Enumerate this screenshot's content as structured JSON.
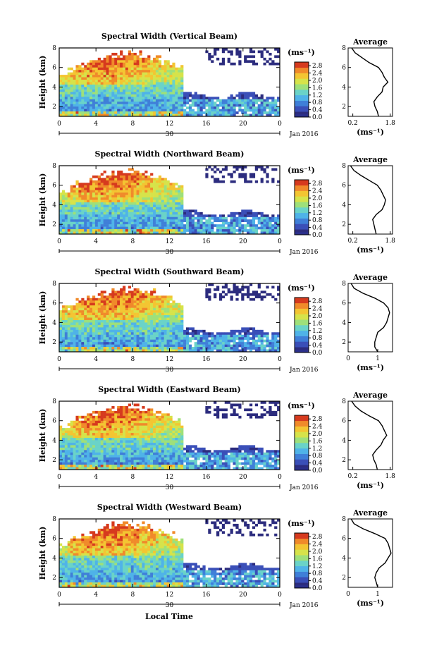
{
  "figure": {
    "xlabel": "Local Time",
    "date_label": "Jan 2016",
    "date_day": "30",
    "ylabel": "Height (km)",
    "colorbar_unit": "(ms⁻¹)",
    "avg_title": "Average",
    "avg_xlabel": "(ms⁻¹)"
  },
  "colors": {
    "colormap": [
      "#2c2c7e",
      "#3a4fb8",
      "#3f7fd8",
      "#4fb3e8",
      "#6ad3c8",
      "#9ee07a",
      "#d6e34a",
      "#f3c532",
      "#f08a2a",
      "#d63a1e"
    ],
    "low_band": "#2b2f8a"
  },
  "chart_data": [
    {
      "type": "heatmap",
      "title": "Spectral Width (Vertical Beam)",
      "xlabel": "",
      "ylabel": "Height (km)",
      "xlim": [
        0,
        24
      ],
      "ylim": [
        1,
        8
      ],
      "x_ticks": [
        "0",
        "4",
        "8",
        "12",
        "16",
        "20",
        "0"
      ],
      "y_ticks": [
        "8",
        "6",
        "4",
        "2"
      ],
      "colorbar": {
        "ticks": [
          "2.8",
          "2.4",
          "2.0",
          "1.6",
          "1.2",
          "0.8",
          "0.4",
          "0.0"
        ],
        "range": [
          0,
          3.0
        ]
      },
      "average": {
        "title": "Average",
        "x_ticks": [
          "0.2",
          "1.8"
        ],
        "x_range": [
          0,
          1.9
        ],
        "y_ticks": [
          "8",
          "6",
          "4",
          "2"
        ],
        "profile": [
          [
            1.3,
            1.0
          ],
          [
            1.25,
            1.5
          ],
          [
            1.15,
            2.0
          ],
          [
            1.1,
            2.5
          ],
          [
            1.25,
            3.0
          ],
          [
            1.45,
            3.5
          ],
          [
            1.5,
            4.0
          ],
          [
            1.7,
            4.5
          ],
          [
            1.55,
            5.0
          ],
          [
            1.45,
            5.5
          ],
          [
            1.3,
            6.0
          ],
          [
            0.9,
            6.5
          ],
          [
            0.6,
            7.0
          ],
          [
            0.3,
            7.5
          ],
          [
            0.15,
            8.0
          ]
        ]
      }
    },
    {
      "type": "heatmap",
      "title": "Spectral Width (Northward Beam)",
      "xlabel": "",
      "ylabel": "Height (km)",
      "xlim": [
        0,
        24
      ],
      "ylim": [
        1,
        8
      ],
      "x_ticks": [
        "0",
        "4",
        "8",
        "12",
        "16",
        "20",
        "0"
      ],
      "y_ticks": [
        "8",
        "6",
        "4",
        "2"
      ],
      "colorbar": {
        "ticks": [
          "2.8",
          "2.4",
          "2.0",
          "1.6",
          "1.2",
          "0.8",
          "0.4",
          "0.0"
        ],
        "range": [
          0,
          3.0
        ]
      },
      "average": {
        "title": "Average",
        "x_ticks": [
          "0.2",
          "1.8"
        ],
        "x_range": [
          0,
          1.9
        ],
        "y_ticks": [
          "8",
          "6",
          "4",
          "2"
        ],
        "profile": [
          [
            1.2,
            1.0
          ],
          [
            1.15,
            1.5
          ],
          [
            1.1,
            2.0
          ],
          [
            1.05,
            2.5
          ],
          [
            1.2,
            3.0
          ],
          [
            1.45,
            3.5
          ],
          [
            1.55,
            4.0
          ],
          [
            1.6,
            4.5
          ],
          [
            1.5,
            5.0
          ],
          [
            1.4,
            5.5
          ],
          [
            1.25,
            6.0
          ],
          [
            0.9,
            6.5
          ],
          [
            0.55,
            7.0
          ],
          [
            0.25,
            7.5
          ],
          [
            0.1,
            8.0
          ]
        ]
      }
    },
    {
      "type": "heatmap",
      "title": "Spectral Width (Southward Beam)",
      "xlabel": "",
      "ylabel": "Height (km)",
      "xlim": [
        0,
        24
      ],
      "ylim": [
        1,
        8
      ],
      "x_ticks": [
        "0",
        "4",
        "8",
        "12",
        "16",
        "20",
        "0"
      ],
      "y_ticks": [
        "8",
        "6",
        "4",
        "2"
      ],
      "colorbar": {
        "ticks": [
          "2.8",
          "2.4",
          "2.0",
          "1.6",
          "1.2",
          "0.8",
          "0.4",
          "0.0"
        ],
        "range": [
          0,
          3.0
        ]
      },
      "average": {
        "title": "Average",
        "x_ticks": [
          "0",
          "1"
        ],
        "x_range": [
          0,
          1.5
        ],
        "y_ticks": [
          "8",
          "6",
          "4",
          "2"
        ],
        "profile": [
          [
            1.0,
            1.0
          ],
          [
            0.9,
            1.5
          ],
          [
            0.9,
            2.0
          ],
          [
            0.95,
            2.5
          ],
          [
            1.0,
            3.0
          ],
          [
            1.2,
            3.5
          ],
          [
            1.3,
            4.0
          ],
          [
            1.35,
            4.5
          ],
          [
            1.4,
            5.0
          ],
          [
            1.35,
            5.5
          ],
          [
            1.2,
            6.0
          ],
          [
            0.9,
            6.5
          ],
          [
            0.5,
            7.0
          ],
          [
            0.2,
            7.5
          ],
          [
            0.1,
            8.0
          ]
        ]
      }
    },
    {
      "type": "heatmap",
      "title": "Spectral Width (Eastward Beam)",
      "xlabel": "",
      "ylabel": "Height (km)",
      "xlim": [
        0,
        24
      ],
      "ylim": [
        1,
        8
      ],
      "x_ticks": [
        "0",
        "4",
        "8",
        "12",
        "16",
        "20",
        "0"
      ],
      "y_ticks": [
        "8",
        "6",
        "4",
        "2"
      ],
      "colorbar": {
        "ticks": [
          "2.8",
          "2.4",
          "2.0",
          "1.6",
          "1.2",
          "0.8",
          "0.4",
          "0.0"
        ],
        "range": [
          0,
          3.0
        ]
      },
      "average": {
        "title": "Average",
        "x_ticks": [
          "0.2",
          "1.8"
        ],
        "x_range": [
          0,
          1.9
        ],
        "y_ticks": [
          "8",
          "6",
          "4",
          "2"
        ],
        "profile": [
          [
            1.25,
            1.0
          ],
          [
            1.2,
            1.5
          ],
          [
            1.1,
            2.0
          ],
          [
            1.05,
            2.5
          ],
          [
            1.2,
            3.0
          ],
          [
            1.4,
            3.5
          ],
          [
            1.5,
            4.0
          ],
          [
            1.65,
            4.5
          ],
          [
            1.55,
            5.0
          ],
          [
            1.45,
            5.5
          ],
          [
            1.3,
            6.0
          ],
          [
            0.9,
            6.5
          ],
          [
            0.55,
            7.0
          ],
          [
            0.3,
            7.5
          ],
          [
            0.15,
            8.0
          ]
        ]
      }
    },
    {
      "type": "heatmap",
      "title": "Spectral Width (Westward Beam)",
      "xlabel": "Local Time",
      "ylabel": "Height (km)",
      "xlim": [
        0,
        24
      ],
      "ylim": [
        1,
        8
      ],
      "x_ticks": [
        "0",
        "4",
        "8",
        "12",
        "16",
        "20",
        "0"
      ],
      "y_ticks": [
        "8",
        "6",
        "4",
        "2"
      ],
      "colorbar": {
        "ticks": [
          "2.8",
          "2.4",
          "2.0",
          "1.6",
          "1.2",
          "0.8",
          "0.4",
          "0.0"
        ],
        "range": [
          0,
          3.0
        ]
      },
      "average": {
        "title": "Average",
        "x_ticks": [
          "0",
          "1"
        ],
        "x_range": [
          0,
          1.5
        ],
        "y_ticks": [
          "8",
          "6",
          "4",
          "2"
        ],
        "profile": [
          [
            1.0,
            1.0
          ],
          [
            0.95,
            1.5
          ],
          [
            0.9,
            2.0
          ],
          [
            0.95,
            2.5
          ],
          [
            1.05,
            3.0
          ],
          [
            1.25,
            3.5
          ],
          [
            1.35,
            4.0
          ],
          [
            1.45,
            4.5
          ],
          [
            1.4,
            5.0
          ],
          [
            1.35,
            5.5
          ],
          [
            1.25,
            6.0
          ],
          [
            0.9,
            6.5
          ],
          [
            0.5,
            7.0
          ],
          [
            0.2,
            7.5
          ],
          [
            0.1,
            8.0
          ]
        ]
      }
    }
  ]
}
